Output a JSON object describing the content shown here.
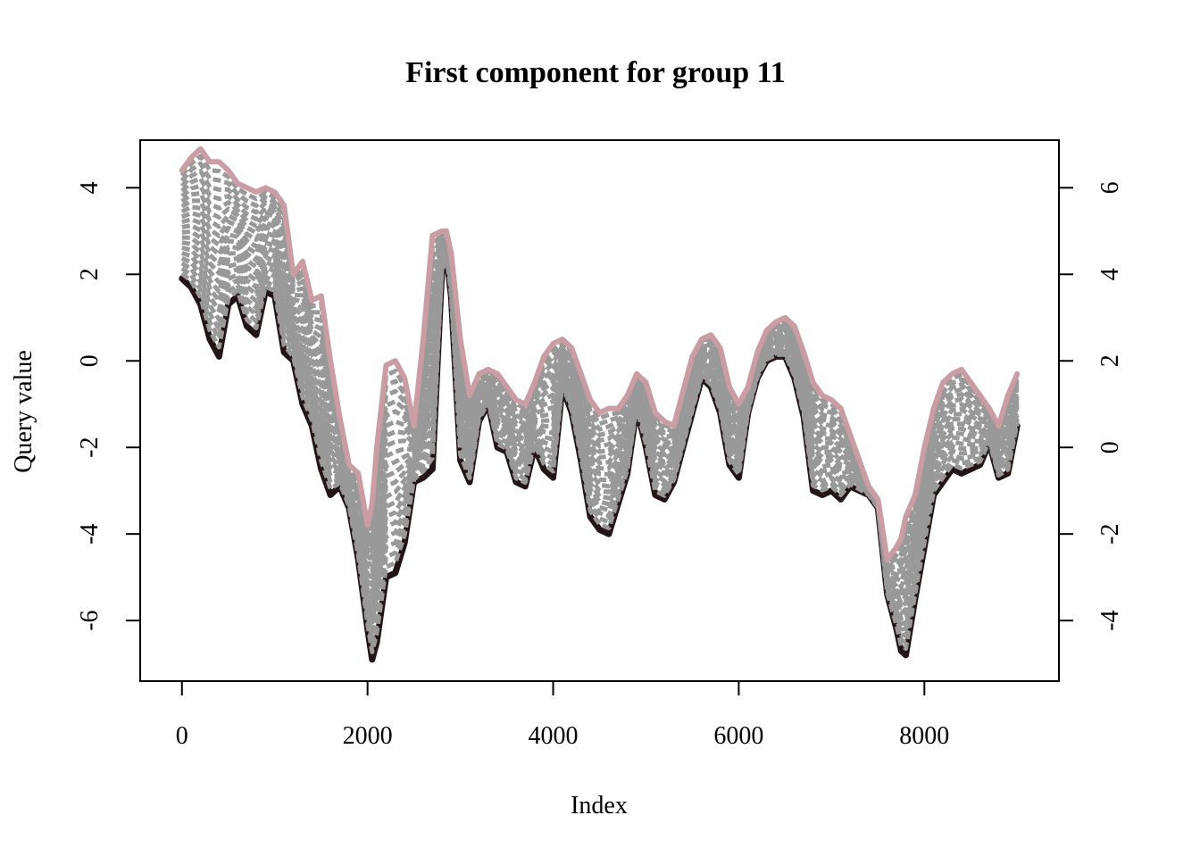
{
  "chart_data": {
    "type": "line",
    "title": "First component for group 11",
    "xlabel": "Index",
    "ylabel": "Query value",
    "xlim": [
      -450,
      9450
    ],
    "ylim": [
      -7.4,
      5.1
    ],
    "x_ticks": [
      0,
      2000,
      4000,
      6000,
      8000
    ],
    "x_tick_labels": [
      "0",
      "2000",
      "4000",
      "6000",
      "8000"
    ],
    "y_ticks": [
      -6,
      -4,
      -2,
      0,
      2,
      4
    ],
    "y_tick_labels": [
      "-6",
      "-4",
      "-2",
      "0",
      "2",
      "4"
    ],
    "right_axis": {
      "ticks": [
        -4,
        -2,
        0,
        2,
        4,
        6
      ],
      "tick_labels": [
        "-4",
        "-2",
        "0",
        "2",
        "4",
        "6"
      ]
    },
    "grid": false,
    "legend": "none",
    "intermediate_curves": 20,
    "colors": {
      "query": "#231516",
      "reference": "#c99da3",
      "intermediate": "#999999"
    },
    "series": [
      {
        "role": "query",
        "color": "#231516",
        "x": [
          0,
          100,
          200,
          300,
          400,
          500,
          600,
          700,
          800,
          900,
          1000,
          1100,
          1200,
          1300,
          1400,
          1500,
          1600,
          1700,
          1800,
          1900,
          2000,
          2050,
          2100,
          2200,
          2300,
          2400,
          2500,
          2600,
          2700,
          2800,
          2850,
          2900,
          3000,
          3100,
          3200,
          3300,
          3400,
          3500,
          3600,
          3700,
          3800,
          3900,
          4000,
          4100,
          4200,
          4300,
          4400,
          4500,
          4600,
          4700,
          4800,
          4900,
          5000,
          5100,
          5200,
          5300,
          5400,
          5500,
          5600,
          5700,
          5800,
          5900,
          6000,
          6100,
          6200,
          6300,
          6400,
          6500,
          6600,
          6700,
          6800,
          6900,
          7000,
          7100,
          7200,
          7300,
          7400,
          7500,
          7600,
          7700,
          7750,
          7800,
          7900,
          8000,
          8100,
          8200,
          8300,
          8400,
          8500,
          8600,
          8700,
          8800,
          8900,
          9000
        ],
        "y": [
          1.9,
          1.7,
          1.3,
          0.5,
          0.1,
          1.3,
          1.5,
          0.8,
          0.6,
          1.6,
          1.5,
          0.2,
          0.0,
          -1.0,
          -1.5,
          -2.5,
          -3.1,
          -2.9,
          -3.4,
          -4.6,
          -6.2,
          -6.9,
          -6.5,
          -5.0,
          -4.9,
          -4.2,
          -2.8,
          -2.7,
          -2.5,
          2.0,
          2.4,
          1.5,
          -2.3,
          -2.8,
          -1.4,
          -1.0,
          -2.0,
          -2.1,
          -2.8,
          -2.9,
          -2.0,
          -2.5,
          -2.7,
          -0.6,
          -1.2,
          -2.3,
          -3.6,
          -3.9,
          -4.0,
          -3.3,
          -2.6,
          -1.1,
          -2.0,
          -3.1,
          -3.2,
          -2.8,
          -2.0,
          -1.2,
          -0.4,
          -0.6,
          -1.2,
          -2.4,
          -2.7,
          -1.2,
          -0.4,
          0.0,
          0.1,
          0.1,
          -0.4,
          -1.3,
          -3.0,
          -3.1,
          -3.0,
          -3.2,
          -2.9,
          -3.0,
          -3.1,
          -3.4,
          -5.4,
          -6.2,
          -6.7,
          -6.8,
          -5.5,
          -4.3,
          -3.1,
          -2.8,
          -2.5,
          -2.6,
          -2.5,
          -2.4,
          -1.9,
          -2.7,
          -2.6,
          -1.5
        ]
      },
      {
        "role": "reference",
        "color": "#c99da3",
        "x": [
          0,
          100,
          200,
          300,
          400,
          500,
          600,
          700,
          800,
          900,
          1000,
          1100,
          1200,
          1300,
          1400,
          1500,
          1600,
          1700,
          1800,
          1900,
          2000,
          2050,
          2100,
          2200,
          2300,
          2400,
          2500,
          2600,
          2700,
          2800,
          2850,
          2900,
          3000,
          3100,
          3200,
          3300,
          3400,
          3500,
          3600,
          3700,
          3800,
          3900,
          4000,
          4100,
          4200,
          4300,
          4400,
          4500,
          4600,
          4700,
          4800,
          4900,
          5000,
          5100,
          5200,
          5300,
          5400,
          5500,
          5600,
          5700,
          5800,
          5900,
          6000,
          6100,
          6200,
          6300,
          6400,
          6500,
          6600,
          6700,
          6800,
          6900,
          7000,
          7100,
          7200,
          7300,
          7400,
          7500,
          7600,
          7700,
          7750,
          7800,
          7900,
          8000,
          8100,
          8200,
          8300,
          8400,
          8500,
          8600,
          8700,
          8800,
          8900,
          9000
        ],
        "y": [
          4.4,
          4.7,
          4.9,
          4.6,
          4.6,
          4.4,
          4.1,
          4.0,
          3.9,
          4.0,
          3.9,
          3.6,
          2.0,
          2.3,
          1.4,
          1.5,
          0.0,
          -1.3,
          -2.4,
          -2.6,
          -3.8,
          -3.3,
          -2.0,
          -0.1,
          0.0,
          -0.4,
          -1.5,
          0.5,
          2.9,
          3.0,
          3.0,
          2.5,
          0.5,
          -0.8,
          -0.3,
          -0.2,
          -0.3,
          -0.6,
          -0.9,
          -1.0,
          -0.5,
          0.1,
          0.4,
          0.5,
          0.3,
          -0.3,
          -0.9,
          -1.2,
          -1.1,
          -1.1,
          -0.8,
          -0.3,
          -0.5,
          -1.2,
          -1.4,
          -1.5,
          -0.7,
          0.1,
          0.5,
          0.6,
          0.3,
          -0.6,
          -1.0,
          -0.6,
          0.2,
          0.7,
          0.9,
          1.0,
          0.8,
          0.2,
          -0.5,
          -0.8,
          -0.9,
          -1.1,
          -1.7,
          -2.3,
          -2.9,
          -3.2,
          -4.6,
          -4.3,
          -4.1,
          -3.6,
          -3.1,
          -2.0,
          -1.1,
          -0.5,
          -0.3,
          -0.2,
          -0.5,
          -0.8,
          -1.1,
          -1.5,
          -0.8,
          -0.3
        ]
      }
    ]
  }
}
